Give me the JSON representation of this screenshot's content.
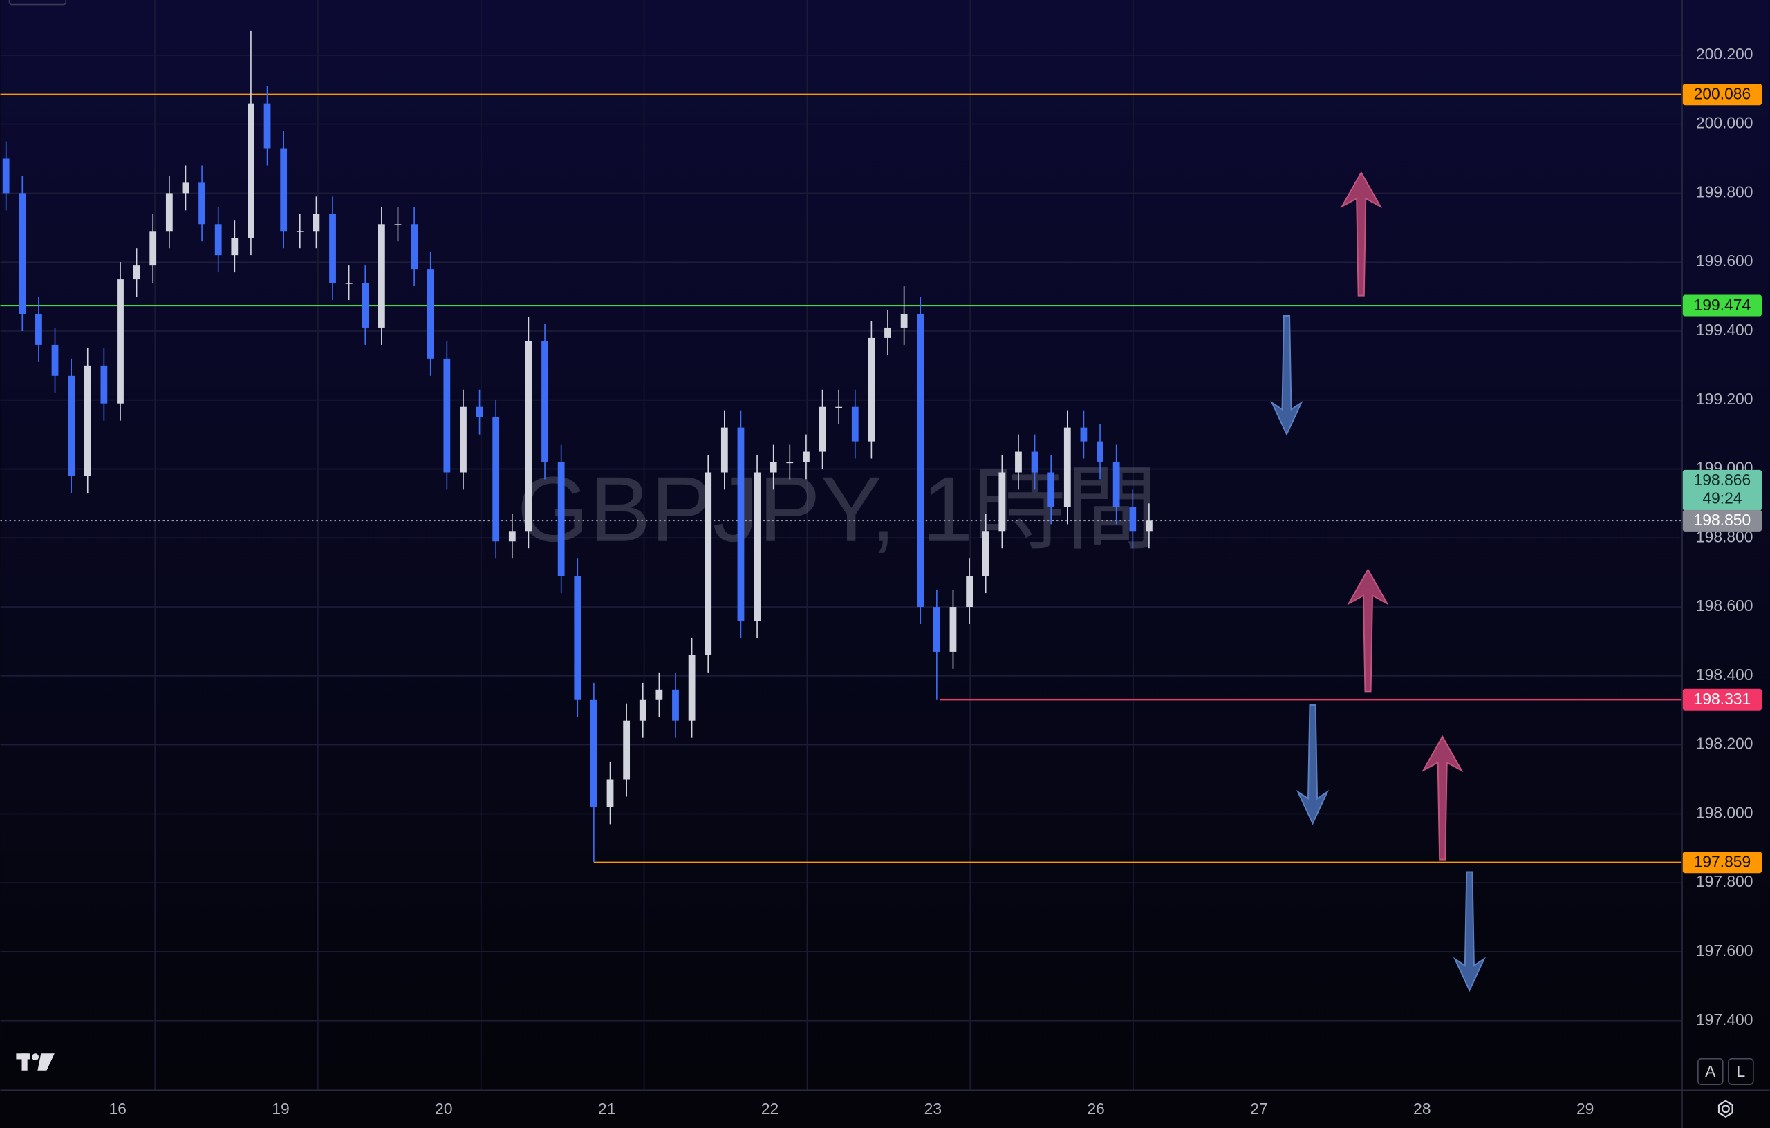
{
  "chart_data": {
    "type": "candlestick",
    "title": "GBPJPY, 1時間",
    "x_labels": [
      "16",
      "19",
      "20",
      "21",
      "22",
      "23",
      "26",
      "27",
      "28",
      "29"
    ],
    "open": [
      199.9,
      199.8,
      199.45,
      199.36,
      199.27,
      198.98,
      199.3,
      199.19,
      199.55,
      199.59,
      199.69,
      199.8,
      199.83,
      199.71,
      199.62,
      199.67,
      200.06,
      199.93,
      199.69,
      199.69,
      199.74,
      199.54,
      199.54,
      199.41,
      199.71,
      199.71,
      199.58,
      199.32,
      198.99,
      199.18,
      199.15,
      198.79,
      198.82,
      199.37,
      199.02,
      198.69,
      198.33,
      198.02,
      198.1,
      198.27,
      198.33,
      198.36,
      198.27,
      198.46,
      198.99,
      199.12,
      198.56,
      198.99,
      199.02,
      199.02,
      199.05,
      199.18,
      199.18,
      199.08,
      199.38,
      199.41,
      199.45,
      198.6,
      198.47,
      198.6,
      198.69,
      198.82,
      198.99,
      199.05,
      198.99,
      198.89,
      199.12,
      199.08,
      199.02,
      198.89,
      198.82
    ],
    "high": [
      199.95,
      199.85,
      199.5,
      199.41,
      199.32,
      199.35,
      199.35,
      199.6,
      199.64,
      199.74,
      199.85,
      199.88,
      199.88,
      199.76,
      199.72,
      200.27,
      200.11,
      199.98,
      199.74,
      199.79,
      199.79,
      199.59,
      199.59,
      199.76,
      199.76,
      199.76,
      199.63,
      199.37,
      199.23,
      199.23,
      199.2,
      198.87,
      199.44,
      199.42,
      199.07,
      198.74,
      198.38,
      198.15,
      198.32,
      198.38,
      198.41,
      198.41,
      198.51,
      199.04,
      199.17,
      199.17,
      199.04,
      199.07,
      199.07,
      199.1,
      199.23,
      199.23,
      199.23,
      199.43,
      199.46,
      199.53,
      199.5,
      198.65,
      198.65,
      198.74,
      198.87,
      199.04,
      199.1,
      199.1,
      199.04,
      199.17,
      199.17,
      199.13,
      199.07,
      198.94,
      198.9
    ],
    "low": [
      199.75,
      199.4,
      199.31,
      199.22,
      198.93,
      198.93,
      199.14,
      199.14,
      199.5,
      199.54,
      199.64,
      199.75,
      199.66,
      199.57,
      199.57,
      199.62,
      199.88,
      199.64,
      199.64,
      199.64,
      199.49,
      199.49,
      199.36,
      199.36,
      199.66,
      199.53,
      199.27,
      198.94,
      198.94,
      199.1,
      198.74,
      198.74,
      198.77,
      198.97,
      198.64,
      198.28,
      197.86,
      197.97,
      198.05,
      198.22,
      198.28,
      198.22,
      198.22,
      198.41,
      198.94,
      198.51,
      198.51,
      198.94,
      198.97,
      198.97,
      199.0,
      199.13,
      199.03,
      199.03,
      199.33,
      199.36,
      198.55,
      198.33,
      198.42,
      198.55,
      198.64,
      198.77,
      198.94,
      198.94,
      198.84,
      198.84,
      199.03,
      198.97,
      198.84,
      198.77,
      198.77
    ],
    "close": [
      199.8,
      199.45,
      199.36,
      199.27,
      198.98,
      199.3,
      199.19,
      199.55,
      199.59,
      199.69,
      199.8,
      199.83,
      199.71,
      199.62,
      199.67,
      200.06,
      199.93,
      199.69,
      199.69,
      199.74,
      199.54,
      199.54,
      199.41,
      199.71,
      199.71,
      199.58,
      199.32,
      198.99,
      199.18,
      199.15,
      198.79,
      198.82,
      199.37,
      199.02,
      198.69,
      198.33,
      198.02,
      198.1,
      198.27,
      198.33,
      198.36,
      198.27,
      198.46,
      198.99,
      199.12,
      198.56,
      198.99,
      199.02,
      199.02,
      199.05,
      199.18,
      199.18,
      199.08,
      199.38,
      199.41,
      199.45,
      198.6,
      198.47,
      198.6,
      198.69,
      198.82,
      198.99,
      199.05,
      198.99,
      198.89,
      199.12,
      199.08,
      199.02,
      198.89,
      198.82,
      198.85
    ],
    "up_color": "#d1d4dc",
    "down_color": "#3d6ef5",
    "ylim": [
      197.2,
      200.36
    ],
    "yticks": [
      {
        "value": 200.2,
        "label": "200.200"
      },
      {
        "value": 200.0,
        "label": "200.000"
      },
      {
        "value": 199.8,
        "label": "199.800"
      },
      {
        "value": 199.6,
        "label": "199.600"
      },
      {
        "value": 199.4,
        "label": "199.400"
      },
      {
        "value": 199.2,
        "label": "199.200"
      },
      {
        "value": 199.0,
        "label": "199.000"
      },
      {
        "value": 198.8,
        "label": "198.800"
      },
      {
        "value": 198.6,
        "label": "198.600"
      },
      {
        "value": 198.4,
        "label": "198.400"
      },
      {
        "value": 198.2,
        "label": "198.200"
      },
      {
        "value": 198.0,
        "label": "198.000"
      },
      {
        "value": 197.8,
        "label": "197.800"
      },
      {
        "value": 197.6,
        "label": "197.600"
      },
      {
        "value": 197.4,
        "label": "197.400"
      }
    ],
    "grid": true,
    "levels": [
      {
        "value": 200.086,
        "label": "200.086",
        "color": "#ff9800"
      },
      {
        "value": 199.474,
        "label": "199.474",
        "color": "#3fdc3f"
      },
      {
        "value": 198.331,
        "label": "198.331",
        "color": "#f23668"
      },
      {
        "value": 197.859,
        "label": "197.859",
        "color": "#ff9800"
      }
    ],
    "price_badge": {
      "value": 198.866,
      "label": "198.866",
      "countdown": "49:24",
      "color": "#6cc7ab"
    },
    "last_price": {
      "value": 198.85,
      "label": "198.850",
      "color": "#8a8d96"
    }
  }
}
